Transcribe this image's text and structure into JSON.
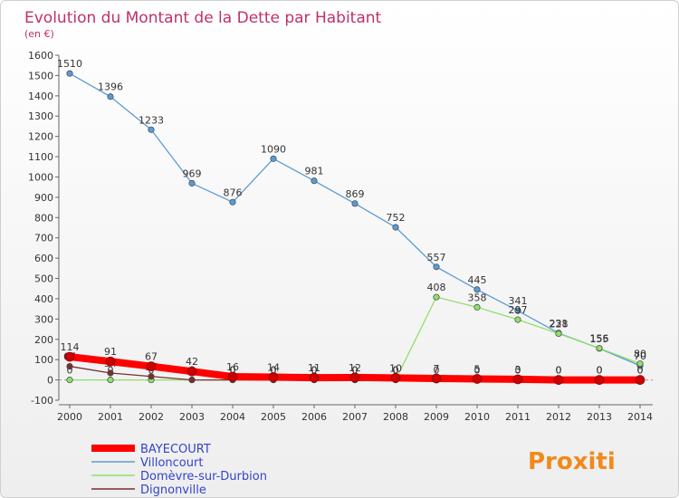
{
  "chart_data": {
    "type": "line",
    "title": "Evolution du Montant de la Dette par Habitant",
    "subtitle": "(en €)",
    "x": [
      "2000",
      "2001",
      "2002",
      "2003",
      "2004",
      "2005",
      "2006",
      "2007",
      "2008",
      "2009",
      "2010",
      "2011",
      "2012",
      "2013",
      "2014"
    ],
    "ylim": [
      -100,
      1600
    ],
    "yticks": [
      -100,
      0,
      100,
      200,
      300,
      400,
      500,
      600,
      700,
      800,
      900,
      1000,
      1100,
      1200,
      1300,
      1400,
      1500,
      1600
    ],
    "grid": false,
    "legend_position": "bottom-left",
    "brand": "Proxiti",
    "series": [
      {
        "name": "BAYECOURT",
        "color": "#ff0000",
        "values": [
          114,
          91,
          67,
          42,
          16,
          14,
          11,
          12,
          10,
          7,
          5,
          3,
          0,
          0,
          0
        ],
        "labels": [
          "114",
          "91",
          "67",
          "42",
          "16",
          "14",
          "11",
          "12",
          "10",
          "7",
          "5",
          "3",
          "0",
          "0",
          "0"
        ]
      },
      {
        "name": "Villoncourt",
        "color": "#5b9bd5",
        "values": [
          1510,
          1396,
          1233,
          969,
          876,
          1090,
          981,
          869,
          752,
          557,
          445,
          341,
          231,
          155,
          70
        ],
        "labels": [
          "1510",
          "1396",
          "1233",
          "969",
          "876",
          "1090",
          "981",
          "869",
          "752",
          "557",
          "445",
          "341",
          "231",
          "155",
          "70"
        ]
      },
      {
        "name": "Domèvre-sur-Durbion",
        "color": "#8fe06b",
        "values": [
          0,
          0,
          0,
          0,
          0,
          0,
          0,
          0,
          0,
          408,
          358,
          297,
          228,
          156,
          80
        ],
        "labels": [
          "0",
          "0",
          "0",
          "0",
          "0",
          "0",
          "0",
          "0",
          "0",
          "408",
          "358",
          "297",
          "228",
          "156",
          "80"
        ]
      },
      {
        "name": "Dignonville",
        "color": "#7a2e2e",
        "values": [
          67,
          34,
          17,
          0,
          0,
          0,
          0,
          0,
          0,
          0,
          0,
          0,
          0,
          0,
          0
        ],
        "labels": [
          "67",
          "34",
          "17",
          "0",
          "0",
          "0",
          "0",
          "0",
          "0",
          "0",
          "0",
          "0",
          "0",
          "0",
          "0"
        ]
      }
    ]
  }
}
